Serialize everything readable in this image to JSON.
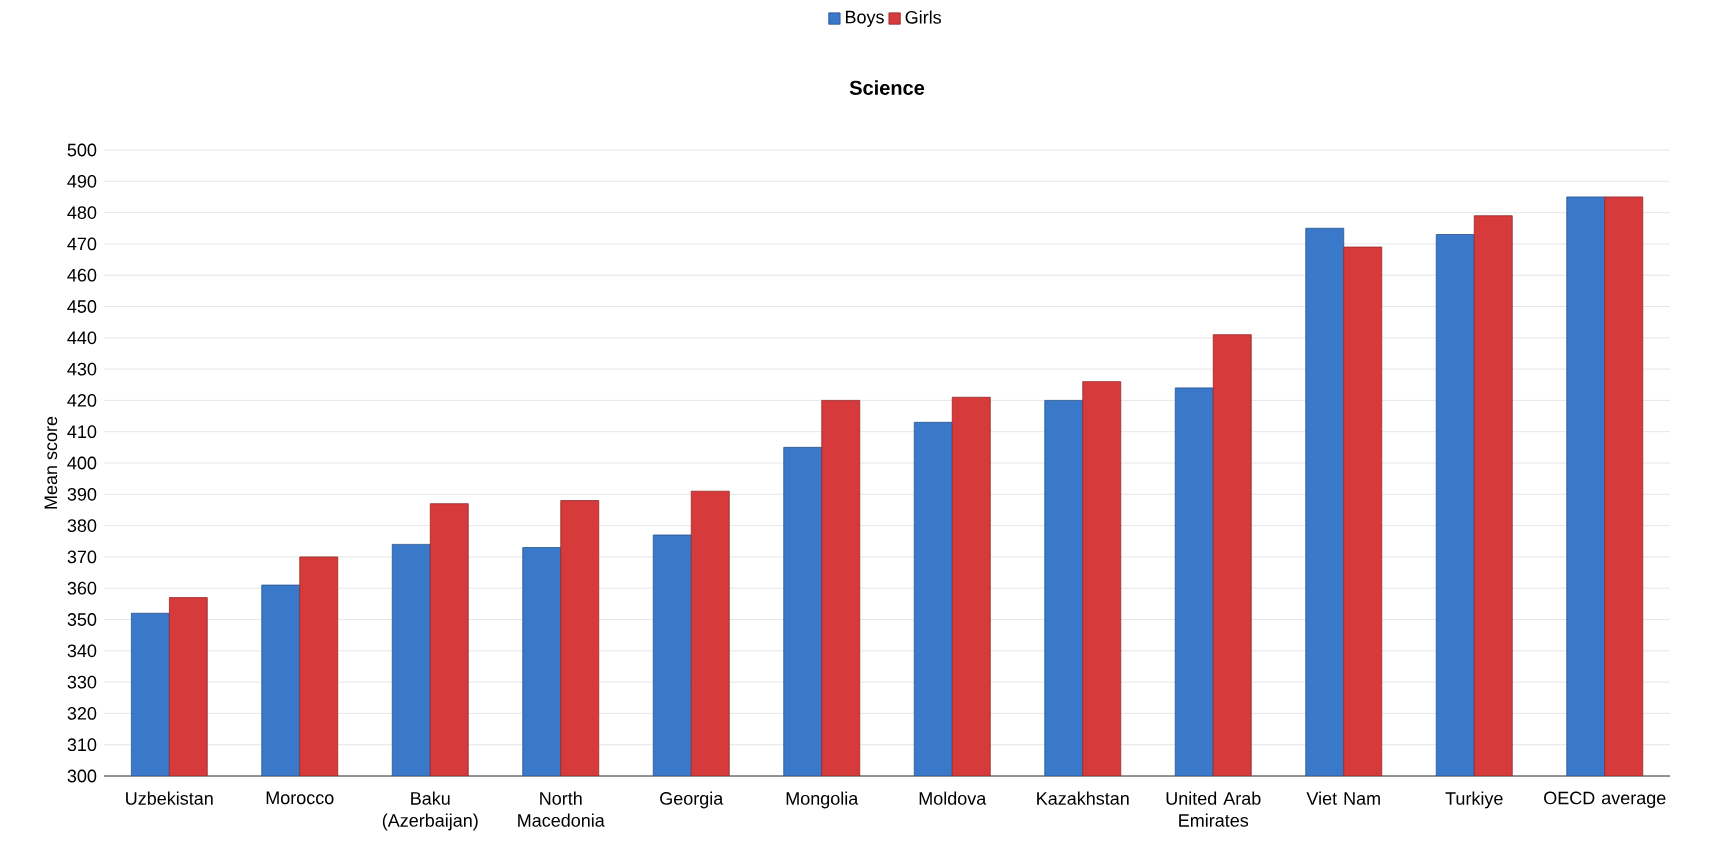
{
  "chart_data": {
    "type": "bar",
    "title": "Science",
    "ylabel": "Mean score",
    "categories": [
      "Uzbekistan",
      "Morocco",
      "Baku (Azerbaijan)",
      "North Macedonia",
      "Georgia",
      "Mongolia",
      "Moldova",
      "Kazakhstan",
      "United Arab Emirates",
      "Viet Nam",
      "Turkiye",
      "OECD average"
    ],
    "series": [
      {
        "name": "Boys",
        "color": "#3a78c9",
        "values": [
          352,
          361,
          374,
          373,
          377,
          405,
          413,
          420,
          424,
          475,
          473,
          485
        ]
      },
      {
        "name": "Girls",
        "color": "#d63a3a",
        "values": [
          357,
          370,
          387,
          388,
          391,
          420,
          421,
          426,
          441,
          469,
          479,
          485
        ]
      }
    ],
    "ylim": [
      300,
      500
    ],
    "yticks": [
      300,
      310,
      320,
      330,
      340,
      350,
      360,
      370,
      380,
      390,
      400,
      410,
      420,
      430,
      440,
      450,
      460,
      470,
      480,
      490,
      500
    ],
    "grid": "y",
    "legend": "top"
  }
}
